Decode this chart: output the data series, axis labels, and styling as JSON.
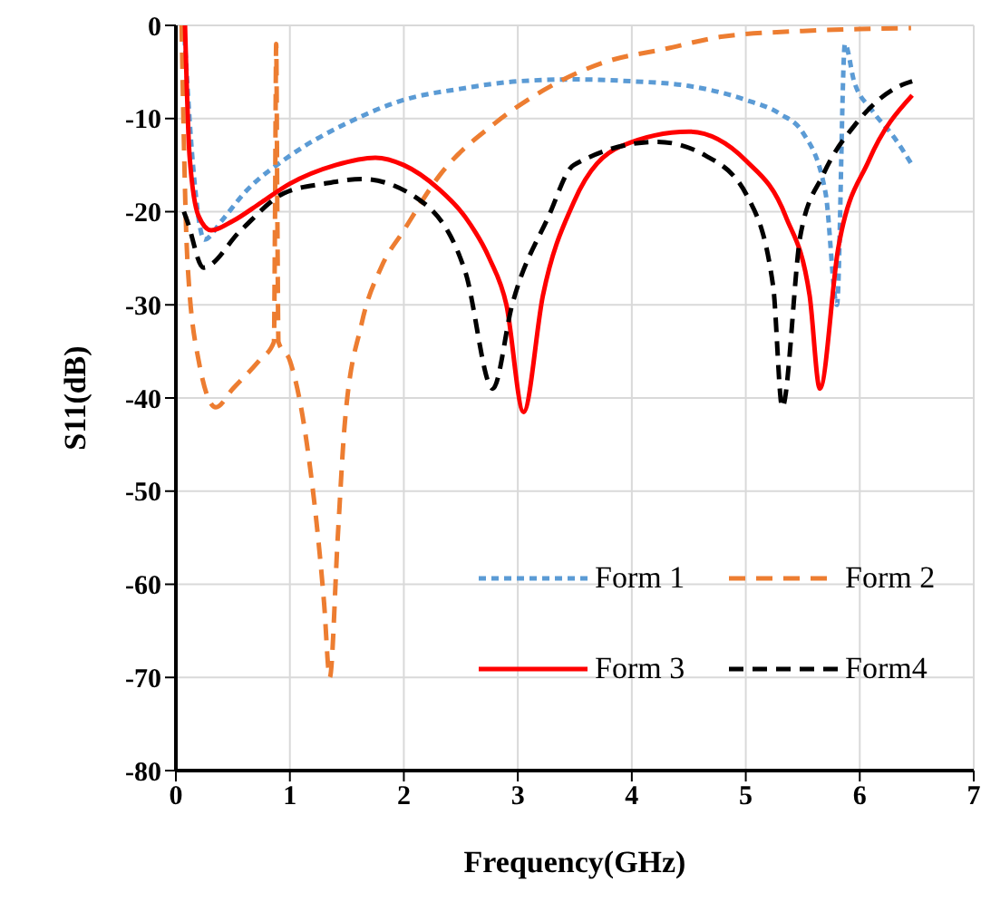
{
  "chart_data": {
    "type": "line",
    "xlabel": "Frequency(GHz)",
    "ylabel": "S11(dB)",
    "xlim": [
      0,
      7
    ],
    "ylim": [
      -80,
      0
    ],
    "xticks": [
      0,
      1,
      2,
      3,
      4,
      5,
      6,
      7
    ],
    "yticks": [
      -80,
      -70,
      -60,
      -50,
      -40,
      -30,
      -20,
      -10,
      0
    ],
    "grid": true,
    "legend": "bottom right",
    "marker": "none",
    "series": [
      {
        "name": "Form 1",
        "color": "#5b9bd5",
        "line_style": "dashed",
        "x": [
          0.07,
          0.15,
          0.25,
          0.4,
          0.6,
          1,
          1.5,
          2,
          2.5,
          3,
          3.5,
          4,
          4.5,
          5,
          5.3,
          5.5,
          5.7,
          5.8,
          5.87,
          5.95,
          6.1,
          6.3,
          6.46
        ],
        "values": [
          0,
          -15,
          -23,
          -21,
          -18,
          -14,
          -10.5,
          -8,
          -6.8,
          -6,
          -5.8,
          -6,
          -6.5,
          -8,
          -9.5,
          -11.5,
          -18,
          -30,
          -2,
          -6,
          -9,
          -12,
          -15
        ]
      },
      {
        "name": "Form 2",
        "color": "#ed7d31",
        "line_style": "dashed",
        "x": [
          0.05,
          0.1,
          0.2,
          0.35,
          0.5,
          0.73,
          0.86,
          0.87,
          0.88,
          0.89,
          0.9,
          1,
          1.15,
          1.3,
          1.35,
          1.42,
          1.48,
          1.63,
          1.8,
          2,
          2.32,
          2.8,
          3.22,
          3.75,
          4.3,
          4.8,
          5.5,
          6,
          6.45
        ],
        "values": [
          0,
          -25,
          -36,
          -41,
          -39,
          -36,
          -34,
          -20,
          -2,
          -20,
          -34,
          -36,
          -45,
          -62,
          -70,
          -55,
          -43,
          -32,
          -26,
          -22,
          -16,
          -10.5,
          -7,
          -4,
          -2.5,
          -1.2,
          -0.6,
          -0.4,
          -0.3
        ]
      },
      {
        "name": "Form 3",
        "color": "#ff0000",
        "line_style": "solid",
        "x": [
          0.08,
          0.12,
          0.2,
          0.31,
          0.5,
          0.75,
          1,
          1.4,
          1.75,
          2,
          2.3,
          2.54,
          2.75,
          2.9,
          3.05,
          3.22,
          3.49,
          3.9,
          4.5,
          5,
          5.35,
          5.56,
          5.65,
          5.81,
          6.08,
          6.46
        ],
        "values": [
          0,
          -14,
          -20.5,
          -22,
          -21,
          -19,
          -17,
          -15,
          -14.2,
          -15,
          -17.5,
          -20.6,
          -25,
          -30,
          -41.5,
          -29,
          -19,
          -13,
          -11.4,
          -14.5,
          -20.5,
          -29,
          -39,
          -24,
          -14.5,
          -7.5
        ]
      },
      {
        "name": "Form4",
        "color": "#000000",
        "line_style": "dashed",
        "x": [
          0.07,
          0.1,
          0.24,
          0.57,
          0.95,
          1.3,
          1.63,
          2.11,
          2.54,
          2.78,
          2.95,
          3.27,
          3.49,
          4.22,
          4.65,
          5.02,
          5.24,
          5.32,
          5.48,
          5.68,
          5.97,
          6.35,
          6.46
        ],
        "values": [
          -20,
          -21,
          -26,
          -22,
          -18,
          -17,
          -16.5,
          -18.5,
          -26.5,
          -39,
          -30,
          -20.5,
          -15,
          -12.5,
          -14,
          -18.5,
          -28,
          -41,
          -22.5,
          -16,
          -10.5,
          -6.5,
          -6
        ]
      }
    ]
  }
}
